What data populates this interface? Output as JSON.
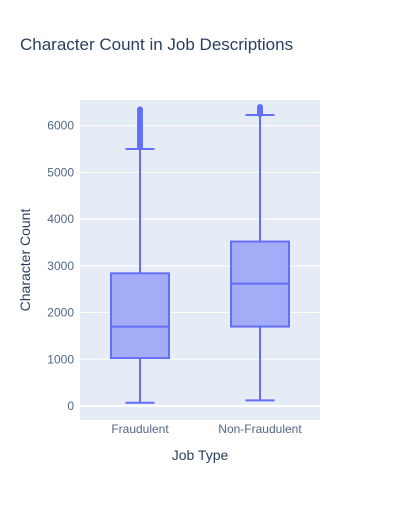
{
  "chart_data": {
    "type": "box",
    "title": "Character Count in Job Descriptions",
    "xlabel": "Job Type",
    "ylabel": "Character Count",
    "categories": [
      "Fraudulent",
      "Non-Fraudulent"
    ],
    "ylim": [
      -300,
      6550
    ],
    "yticks": [
      0,
      1000,
      2000,
      3000,
      4000,
      5000,
      6000
    ],
    "grid": true,
    "legend": "none",
    "colors": {
      "box_fill": "#a3acf7",
      "box_line": "#636efa",
      "plot_bg": "#e5ecf6",
      "grid": "#ffffff",
      "text": "#2a3f5f",
      "tick_text": "#506784"
    },
    "boxes": [
      {
        "category": "Fraudulent",
        "lowerfence": 70,
        "q1": 1025,
        "median": 1700,
        "q3": 2840,
        "upperfence": 5500,
        "outliers": [
          5540,
          5580,
          5620,
          5660,
          5700,
          5740,
          5780,
          5820,
          5860,
          5900,
          5940,
          5980,
          6020,
          6060,
          6100,
          6150,
          6200,
          6250,
          6300,
          6350
        ]
      },
      {
        "category": "Non-Fraudulent",
        "lowerfence": 120,
        "q1": 1700,
        "median": 2620,
        "q3": 3520,
        "upperfence": 6230,
        "outliers": [
          6250,
          6280,
          6310,
          6340,
          6370,
          6400
        ]
      }
    ]
  }
}
